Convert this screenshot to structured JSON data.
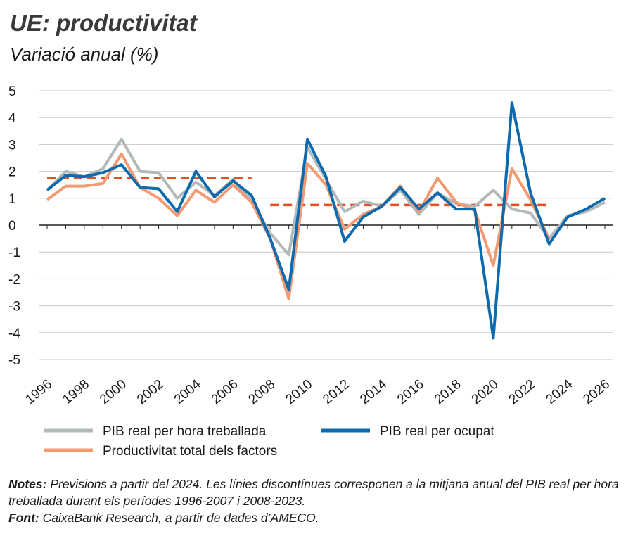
{
  "chart_data": {
    "type": "line",
    "title": "UE: productivitat",
    "subtitle": "Variació anual (%)",
    "x": [
      1996,
      1997,
      1998,
      1999,
      2000,
      2001,
      2002,
      2003,
      2004,
      2005,
      2006,
      2007,
      2008,
      2009,
      2010,
      2011,
      2012,
      2013,
      2014,
      2015,
      2016,
      2017,
      2018,
      2019,
      2020,
      2021,
      2022,
      2023,
      2024,
      2025,
      2026
    ],
    "series": [
      {
        "name": "PIB real per hora treballada",
        "color": "#b3b9b9",
        "values": [
          1.3,
          2.0,
          1.8,
          2.1,
          3.2,
          2.0,
          1.95,
          1.0,
          1.6,
          1.1,
          1.7,
          0.9,
          -0.3,
          -1.1,
          2.9,
          1.7,
          0.5,
          0.9,
          0.7,
          1.3,
          0.4,
          1.2,
          0.8,
          0.7,
          1.3,
          0.6,
          0.45,
          -0.5,
          0.35,
          0.5,
          0.85
        ]
      },
      {
        "name": "PIB real per ocupat",
        "color": "#0d6aad",
        "values": [
          1.3,
          1.85,
          1.8,
          1.95,
          2.25,
          1.4,
          1.35,
          0.5,
          2.0,
          1.05,
          1.65,
          1.1,
          -0.5,
          -2.4,
          3.2,
          1.8,
          -0.6,
          0.3,
          0.7,
          1.4,
          0.6,
          1.2,
          0.6,
          0.6,
          -4.2,
          4.55,
          1.2,
          -0.7,
          0.3,
          0.6,
          1.0
        ]
      },
      {
        "name": "Productivitat total dels factors",
        "color": "#f39a72",
        "values": [
          0.95,
          1.45,
          1.45,
          1.55,
          2.65,
          1.4,
          1.0,
          0.35,
          1.3,
          0.85,
          1.5,
          0.85,
          -0.5,
          -2.75,
          2.3,
          1.5,
          -0.15,
          0.4,
          0.7,
          1.45,
          0.5,
          1.75,
          0.85,
          0.55,
          -1.5,
          2.1,
          0.95,
          -0.5,
          null,
          null,
          null
        ]
      }
    ],
    "reference_lines": [
      {
        "x": [
          1996,
          2007
        ],
        "value": 1.75,
        "color": "#e0512a"
      },
      {
        "x": [
          2008,
          2023
        ],
        "value": 0.75,
        "color": "#e0512a"
      }
    ],
    "xlim": [
      1996,
      2026
    ],
    "xticks": [
      1996,
      1998,
      2000,
      2002,
      2004,
      2006,
      2008,
      2010,
      2012,
      2014,
      2016,
      2018,
      2020,
      2022,
      2024,
      2026
    ],
    "ylim": [
      -5,
      5
    ],
    "yticks": [
      5,
      4,
      3,
      2,
      1,
      0,
      -1,
      -2,
      -3,
      -4,
      -5
    ],
    "grid": true,
    "notes_label": "Notes:",
    "notes": "Previsions a partir del 2024. Les línies discontínues corresponen a la mitjana anual del PIB real per hora treballada durant els períodes 1996-2007 i 2008-2023.",
    "source_label": "Font:",
    "source": "CaixaBank Research, a partir de dades d’AMECO."
  }
}
